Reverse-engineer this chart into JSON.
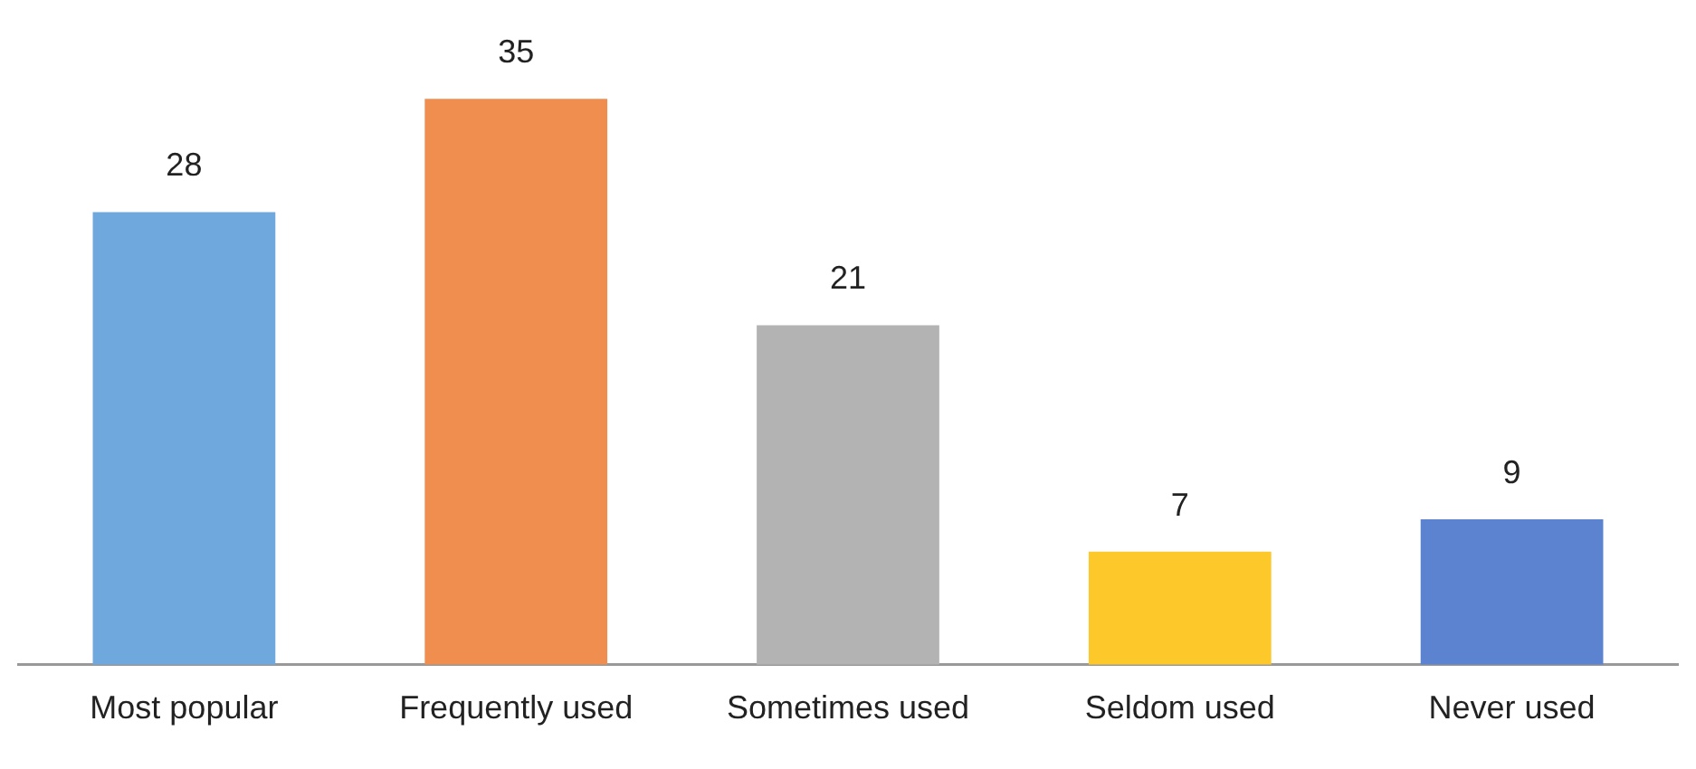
{
  "chart_data": {
    "type": "bar",
    "categories": [
      "Most popular",
      "Frequently used",
      "Sometimes used",
      "Seldom used",
      "Never used"
    ],
    "values": [
      28,
      35,
      21,
      7,
      9
    ],
    "colors": [
      "#6fa8dc",
      "#ef8e4f",
      "#b3b3b3",
      "#fdc82a",
      "#5b83cf"
    ],
    "data_labels": true,
    "grid": false,
    "legend": false
  }
}
